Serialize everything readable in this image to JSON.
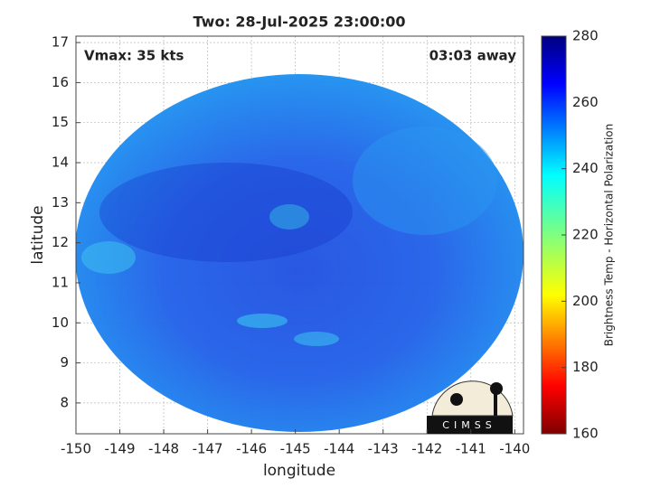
{
  "chart_data": {
    "type": "map",
    "title": "Two: 28-Jul-2025 23:00:00",
    "xlabel": "longitude",
    "ylabel": "latitude",
    "annotations": [
      "Vmax: 35 kts",
      "03:03 away"
    ],
    "xlim": [
      -150,
      -139.8
    ],
    "xticks": [
      -150,
      -149,
      -148,
      -147,
      -146,
      -145,
      -144,
      -143,
      -142,
      -141,
      -140
    ],
    "ylim": [
      7.23,
      17.16
    ],
    "yticks": [
      8,
      9,
      10,
      11,
      12,
      13,
      14,
      15,
      16,
      17
    ],
    "grid": true,
    "colorbar": {
      "label": "Brightness Temp - Horizontal Polarization",
      "lim": [
        160,
        280
      ],
      "ticks": [
        160,
        180,
        200,
        220,
        240,
        260,
        280
      ]
    },
    "logo": "CIMSS"
  }
}
